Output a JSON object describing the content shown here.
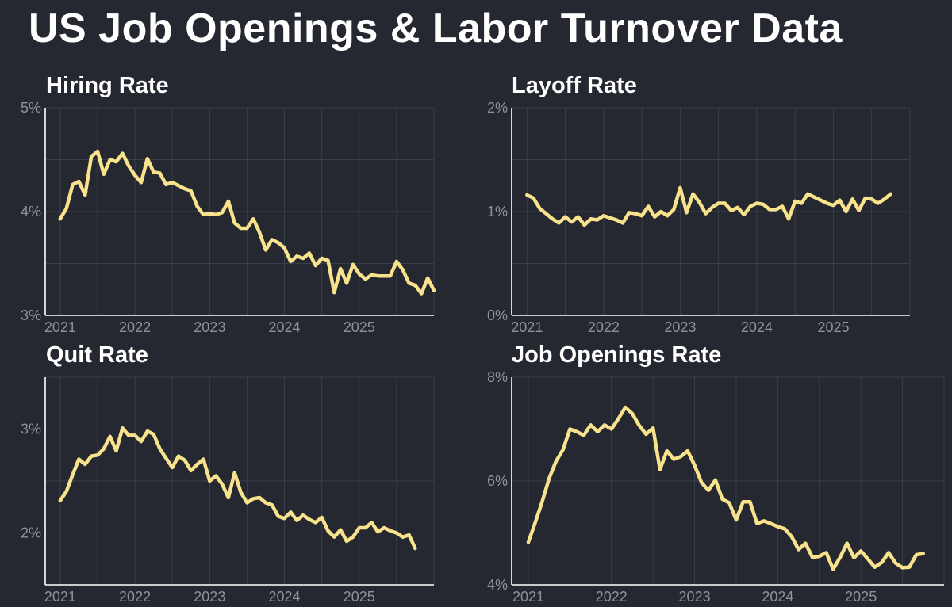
{
  "title": "US Job Openings & Labor Turnover Data",
  "colors": {
    "background": "#252830",
    "line": "#f8e28c",
    "grid": "#3a3e47",
    "axis": "#ffffff",
    "tick": "#8e929b"
  },
  "chart_data": [
    {
      "type": "line",
      "title": "Hiring Rate",
      "xlim": [
        2020.8,
        2026.0
      ],
      "ylim": [
        3,
        5
      ],
      "yticks": [
        3,
        4,
        5
      ],
      "ytick_labels": [
        "3%",
        "4%",
        "5%"
      ],
      "xticks": [
        2021,
        2022,
        2023,
        2024,
        2025
      ],
      "xtick_labels": [
        "2021",
        "2022",
        "2023",
        "2024",
        "2025"
      ],
      "start": 2021.0,
      "step": 0.08333,
      "values": [
        3.93,
        4.03,
        4.26,
        4.29,
        4.16,
        4.53,
        4.58,
        4.36,
        4.5,
        4.48,
        4.56,
        4.44,
        4.35,
        4.28,
        4.51,
        4.38,
        4.37,
        4.26,
        4.28,
        4.25,
        4.22,
        4.2,
        4.05,
        3.97,
        3.98,
        3.97,
        3.99,
        4.1,
        3.89,
        3.84,
        3.84,
        3.93,
        3.8,
        3.63,
        3.73,
        3.7,
        3.65,
        3.52,
        3.57,
        3.55,
        3.6,
        3.48,
        3.55,
        3.53,
        3.22,
        3.45,
        3.31,
        3.49,
        3.4,
        3.35,
        3.39,
        3.38,
        3.38,
        3.38,
        3.52,
        3.44,
        3.31,
        3.29,
        3.21,
        3.36,
        3.24
      ]
    },
    {
      "type": "line",
      "title": "Layoff Rate",
      "xlim": [
        2020.8,
        2026.0
      ],
      "ylim": [
        0,
        2
      ],
      "yticks": [
        0,
        1,
        2
      ],
      "ytick_labels": [
        "0%",
        "1%",
        "2%"
      ],
      "xticks": [
        2021,
        2022,
        2023,
        2024,
        2025
      ],
      "xtick_labels": [
        "2021",
        "2022",
        "2023",
        "2024",
        "2025"
      ],
      "start": 2021.0,
      "step": 0.08333,
      "values": [
        1.16,
        1.13,
        1.03,
        0.98,
        0.93,
        0.89,
        0.95,
        0.9,
        0.95,
        0.87,
        0.93,
        0.92,
        0.96,
        0.94,
        0.92,
        0.89,
        0.99,
        0.98,
        0.96,
        1.05,
        0.95,
        1.0,
        0.96,
        1.02,
        1.23,
        0.99,
        1.17,
        1.09,
        0.98,
        1.04,
        1.08,
        1.08,
        1.01,
        1.04,
        0.97,
        1.05,
        1.08,
        1.07,
        1.02,
        1.02,
        1.05,
        0.93,
        1.1,
        1.08,
        1.17,
        1.14,
        1.11,
        1.08,
        1.06,
        1.11,
        1.0,
        1.12,
        1.01,
        1.13,
        1.12,
        1.08,
        1.12,
        1.17
      ]
    },
    {
      "type": "line",
      "title": "Quit Rate",
      "xlim": [
        2020.8,
        2026.0
      ],
      "ylim": [
        1.5,
        3.5
      ],
      "yticks": [
        2,
        3
      ],
      "ytick_labels": [
        "2%",
        "3%"
      ],
      "xticks": [
        2021,
        2022,
        2023,
        2024,
        2025
      ],
      "xtick_labels": [
        "2021",
        "2022",
        "2023",
        "2024",
        "2025"
      ],
      "start": 2021.0,
      "step": 0.08333,
      "values": [
        2.31,
        2.4,
        2.56,
        2.71,
        2.66,
        2.74,
        2.75,
        2.81,
        2.93,
        2.79,
        3.01,
        2.94,
        2.94,
        2.88,
        2.98,
        2.95,
        2.81,
        2.72,
        2.63,
        2.74,
        2.7,
        2.6,
        2.66,
        2.71,
        2.5,
        2.55,
        2.47,
        2.34,
        2.58,
        2.39,
        2.29,
        2.33,
        2.34,
        2.29,
        2.27,
        2.16,
        2.14,
        2.2,
        2.12,
        2.17,
        2.13,
        2.1,
        2.15,
        2.02,
        1.96,
        2.03,
        1.92,
        1.96,
        2.05,
        2.05,
        2.1,
        2.01,
        2.05,
        2.02,
        2.0,
        1.96,
        1.98,
        1.85
      ]
    },
    {
      "type": "line",
      "title": "Job Openings Rate",
      "xlim": [
        2020.8,
        2026.0
      ],
      "ylim": [
        4,
        8
      ],
      "yticks": [
        4,
        6,
        8
      ],
      "ytick_labels": [
        "4%",
        "6%",
        "8%"
      ],
      "xticks": [
        2021,
        2022,
        2023,
        2024,
        2025
      ],
      "xtick_labels": [
        "2021",
        "2022",
        "2023",
        "2024",
        "2025"
      ],
      "start": 2021.0,
      "step": 0.08333,
      "values": [
        4.82,
        5.2,
        5.6,
        6.05,
        6.38,
        6.6,
        7.0,
        6.95,
        6.88,
        7.08,
        6.95,
        7.08,
        7.0,
        7.2,
        7.42,
        7.3,
        7.07,
        6.9,
        7.02,
        6.22,
        6.58,
        6.42,
        6.47,
        6.58,
        6.3,
        5.97,
        5.82,
        6.02,
        5.65,
        5.58,
        5.25,
        5.6,
        5.6,
        5.18,
        5.23,
        5.18,
        5.12,
        5.08,
        4.93,
        4.68,
        4.8,
        4.53,
        4.55,
        4.62,
        4.3,
        4.53,
        4.8,
        4.52,
        4.65,
        4.5,
        4.34,
        4.43,
        4.62,
        4.42,
        4.33,
        4.34,
        4.58,
        4.6
      ]
    }
  ]
}
